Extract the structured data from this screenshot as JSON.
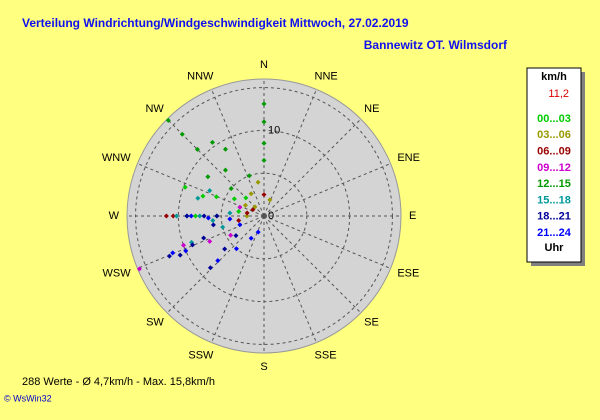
{
  "chart_data": {
    "type": "wind-rose-scatter",
    "title": "Verteilung Windrichtung/Windgeschwindigkeit  Mittwoch, 27.02.2019",
    "subtitle": "Bannewitz OT. Wilmsdorf",
    "directions": [
      "N",
      "NNE",
      "NE",
      "ENE",
      "E",
      "ESE",
      "SE",
      "SSE",
      "S",
      "SSW",
      "SW",
      "WSW",
      "W",
      "WNW",
      "NW",
      "NNW"
    ],
    "rlim": [
      0,
      16
    ],
    "rticks": [
      0,
      10
    ],
    "rgrid": [
      5,
      10,
      15
    ],
    "legend_title": "km/h",
    "current_speed": "11,2",
    "legend_footer": "Uhr",
    "footer": "288 Werte   -   Ø 4,7km/h   -   Max. 15,8km/h",
    "credit": "© WsWin32",
    "series": [
      {
        "name": "00...03",
        "color": "#00cc00",
        "directions": [
          290,
          288,
          292,
          270,
          300,
          315,
          270,
          280
        ],
        "speeds": [
          9.8,
          7.5,
          6,
          8,
          4,
          3,
          5.5,
          3
        ]
      },
      {
        "name": "03...06",
        "color": "#999900",
        "directions": [
          330,
          20,
          300,
          270,
          350,
          315
        ],
        "speeds": [
          3,
          2,
          2.5,
          2,
          4,
          1.5
        ]
      },
      {
        "name": "06...09",
        "color": "#990000",
        "directions": [
          270,
          270,
          280,
          0,
          300,
          260
        ],
        "speeds": [
          11.4,
          10.6,
          2,
          2.5,
          1.5,
          3
        ]
      },
      {
        "name": "09...12",
        "color": "#cc00cc",
        "directions": [
          247,
          245,
          240,
          290,
          250
        ],
        "speeds": [
          15.8,
          7,
          4.5,
          3,
          10
        ]
      },
      {
        "name": "12...15",
        "color": "#009900",
        "directions": [
          315,
          315,
          315,
          325,
          0,
          0,
          0,
          0,
          330,
          320,
          310,
          305,
          340
        ],
        "speeds": [
          15.8,
          13.5,
          11,
          10.5,
          13.1,
          11,
          8.5,
          6.5,
          9,
          7,
          5,
          8,
          5
        ]
      },
      {
        "name": "15...18",
        "color": "#009999",
        "directions": [
          270,
          270,
          270,
          265,
          285,
          295,
          250,
          255,
          275
        ],
        "speeds": [
          10.2,
          9,
          7.5,
          6,
          8,
          7,
          9,
          5,
          4
        ]
      },
      {
        "name": "18...21",
        "color": "#000099",
        "directions": [
          247,
          245,
          248,
          250,
          270,
          270,
          270,
          260,
          226,
          230,
          235
        ],
        "speeds": [
          12,
          10.8,
          9,
          7.5,
          9,
          7,
          5.5,
          6,
          8.7,
          6,
          4
        ]
      },
      {
        "name": "21...24",
        "color": "#0000ff",
        "directions": [
          248,
          246,
          226,
          220,
          210,
          270,
          268,
          265,
          250,
          200
        ],
        "speeds": [
          11.5,
          10,
          7.5,
          5,
          3,
          8.5,
          6.5,
          4,
          3,
          2
        ]
      }
    ]
  }
}
